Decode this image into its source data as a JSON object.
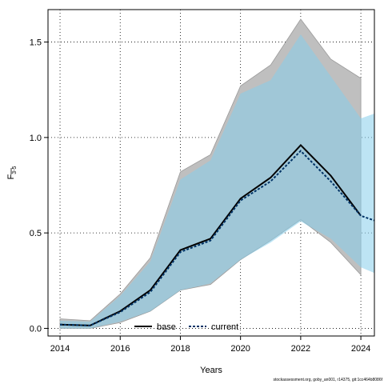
{
  "chart_data": {
    "type": "area",
    "xlabel": "Years",
    "ylabel": "F",
    "ylabel_subscript": "3-5",
    "xlim": [
      2013.6,
      2024.45
    ],
    "ylim": [
      -0.04,
      1.67
    ],
    "x_ticks": [
      2014,
      2016,
      2018,
      2020,
      2022,
      2024
    ],
    "y_ticks": [
      0.0,
      0.5,
      1.0,
      1.5
    ],
    "y_tick_labels": [
      "0.0",
      "0.5",
      "1.0",
      "1.5"
    ],
    "grid": true,
    "legend_placement": "bottom-center",
    "series": [
      {
        "name": "base",
        "color": "#000000",
        "band_color": "#bfbfbf",
        "x": [
          2014,
          2015,
          2016,
          2017,
          2018,
          2019,
          2020,
          2021,
          2022,
          2023,
          2024
        ],
        "values": [
          0.02,
          0.015,
          0.09,
          0.2,
          0.41,
          0.47,
          0.68,
          0.79,
          0.96,
          0.8,
          0.59
        ],
        "lower": [
          0.0,
          0.0,
          0.03,
          0.09,
          0.2,
          0.23,
          0.36,
          0.46,
          0.57,
          0.45,
          0.28
        ],
        "upper": [
          0.05,
          0.04,
          0.18,
          0.37,
          0.82,
          0.91,
          1.27,
          1.38,
          1.62,
          1.41,
          1.31
        ]
      },
      {
        "name": "current",
        "color": "#003366",
        "band_color": "#87ceeb",
        "x": [
          2014,
          2015,
          2016,
          2017,
          2018,
          2019,
          2020,
          2021,
          2022,
          2023,
          2024,
          2024.45
        ],
        "values": [
          0.02,
          0.015,
          0.085,
          0.19,
          0.4,
          0.46,
          0.67,
          0.77,
          0.93,
          0.77,
          0.59,
          0.565
        ],
        "lower": [
          0.0,
          0.0,
          0.035,
          0.09,
          0.2,
          0.235,
          0.36,
          0.45,
          0.56,
          0.47,
          0.32,
          0.29
        ],
        "upper": [
          0.04,
          0.035,
          0.17,
          0.35,
          0.78,
          0.88,
          1.23,
          1.3,
          1.54,
          1.32,
          1.1,
          1.125
        ]
      }
    ]
  },
  "footer_text": "stockassessment.org, goby_an001, r14375, git:1cc464b8086f"
}
